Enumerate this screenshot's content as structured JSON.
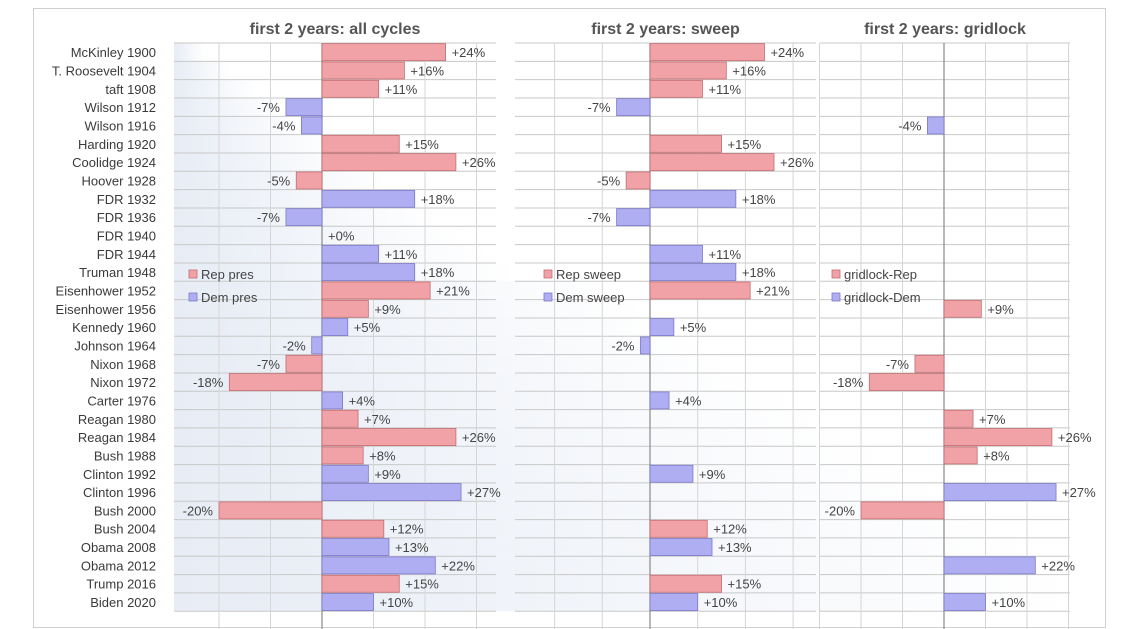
{
  "chart_data": {
    "type": "bar",
    "orientation": "horizontal",
    "categories": [
      "McKinley 1900",
      "T. Roosevelt 1904",
      "taft 1908",
      "Wilson 1912",
      "Wilson 1916",
      "Harding 1920",
      "Coolidge 1924",
      "Hoover 1928",
      "FDR 1932",
      "FDR 1936",
      "FDR 1940",
      "FDR 1944",
      "Truman 1948",
      "Eisenhower 1952",
      "Eisenhower 1956",
      "Kennedy 1960",
      "Johnson 1964",
      "Nixon 1968",
      "Nixon 1972",
      "Carter 1976",
      "Reagan 1980",
      "Reagan 1984",
      "Bush 1988",
      "Clinton 1992",
      "Clinton 1996",
      "Bush 2000",
      "Bush 2004",
      "Obama 2008",
      "Obama 2012",
      "Trump 2016",
      "Biden 2020"
    ],
    "party": [
      "R",
      "R",
      "R",
      "D",
      "D",
      "R",
      "R",
      "R",
      "D",
      "D",
      "D",
      "D",
      "D",
      "R",
      "R",
      "D",
      "D",
      "R",
      "R",
      "D",
      "R",
      "R",
      "R",
      "D",
      "D",
      "R",
      "R",
      "D",
      "D",
      "R",
      "D"
    ],
    "panels": [
      {
        "title": "first 2 years: all cycles",
        "values": [
          24,
          16,
          11,
          -7,
          -4,
          15,
          26,
          -5,
          18,
          -7,
          0,
          11,
          18,
          21,
          9,
          5,
          -2,
          -7,
          -18,
          4,
          7,
          26,
          8,
          9,
          27,
          -20,
          12,
          13,
          22,
          15,
          10
        ],
        "labels": [
          "+24%",
          "+16%",
          "+11%",
          "-7%",
          "-4%",
          "+15%",
          "+26%",
          "-5%",
          "+18%",
          "-7%",
          "+0%",
          "+11%",
          "+18%",
          "+21%",
          "+9%",
          "+5%",
          "-2%",
          "-7%",
          "-18%",
          "+4%",
          "+7%",
          "+26%",
          "+8%",
          "+9%",
          "+27%",
          "-20%",
          "+12%",
          "+13%",
          "+22%",
          "+15%",
          "+10%"
        ],
        "legend": [
          "Rep pres",
          "Dem pres"
        ]
      },
      {
        "title": "first 2 years: sweep",
        "values": [
          24,
          16,
          11,
          -7,
          null,
          15,
          26,
          -5,
          18,
          -7,
          0,
          11,
          18,
          21,
          null,
          5,
          -2,
          null,
          null,
          4,
          null,
          null,
          null,
          9,
          null,
          null,
          12,
          13,
          null,
          15,
          10
        ],
        "labels": [
          "+24%",
          "+16%",
          "+11%",
          "-7%",
          "",
          "+15%",
          "+26%",
          "-5%",
          "+18%",
          "-7%",
          "",
          "+11%",
          "+18%",
          "+21%",
          "",
          "+5%",
          "-2%",
          "",
          "",
          "+4%",
          "",
          "",
          "",
          "+9%",
          "",
          "",
          "+12%",
          "+13%",
          "",
          "+15%",
          "+10%"
        ],
        "legend": [
          "Rep sweep",
          "Dem sweep"
        ]
      },
      {
        "title": "first 2 years: gridlock",
        "values": [
          null,
          null,
          null,
          null,
          -4,
          null,
          null,
          null,
          null,
          null,
          null,
          null,
          null,
          null,
          9,
          null,
          null,
          -7,
          -18,
          null,
          7,
          26,
          8,
          null,
          27,
          -20,
          null,
          null,
          22,
          null,
          10
        ],
        "labels": [
          "",
          "",
          "",
          "",
          "-4%",
          "",
          "",
          "",
          "",
          "",
          "",
          "",
          "",
          "",
          "+9%",
          "",
          "",
          "-7%",
          "-18%",
          "",
          "+7%",
          "+26%",
          "+8%",
          "",
          "+27%",
          "-20%",
          "",
          "",
          "+22%",
          "",
          "+10%"
        ],
        "legend": [
          "gridlock-Rep",
          "gridlock-Dem"
        ]
      }
    ],
    "colors": {
      "rep": "#f0a2a6",
      "dem": "#b0aef2"
    },
    "xlabel": "",
    "ylabel": "",
    "grid": true,
    "legend_position": "middle-left"
  }
}
